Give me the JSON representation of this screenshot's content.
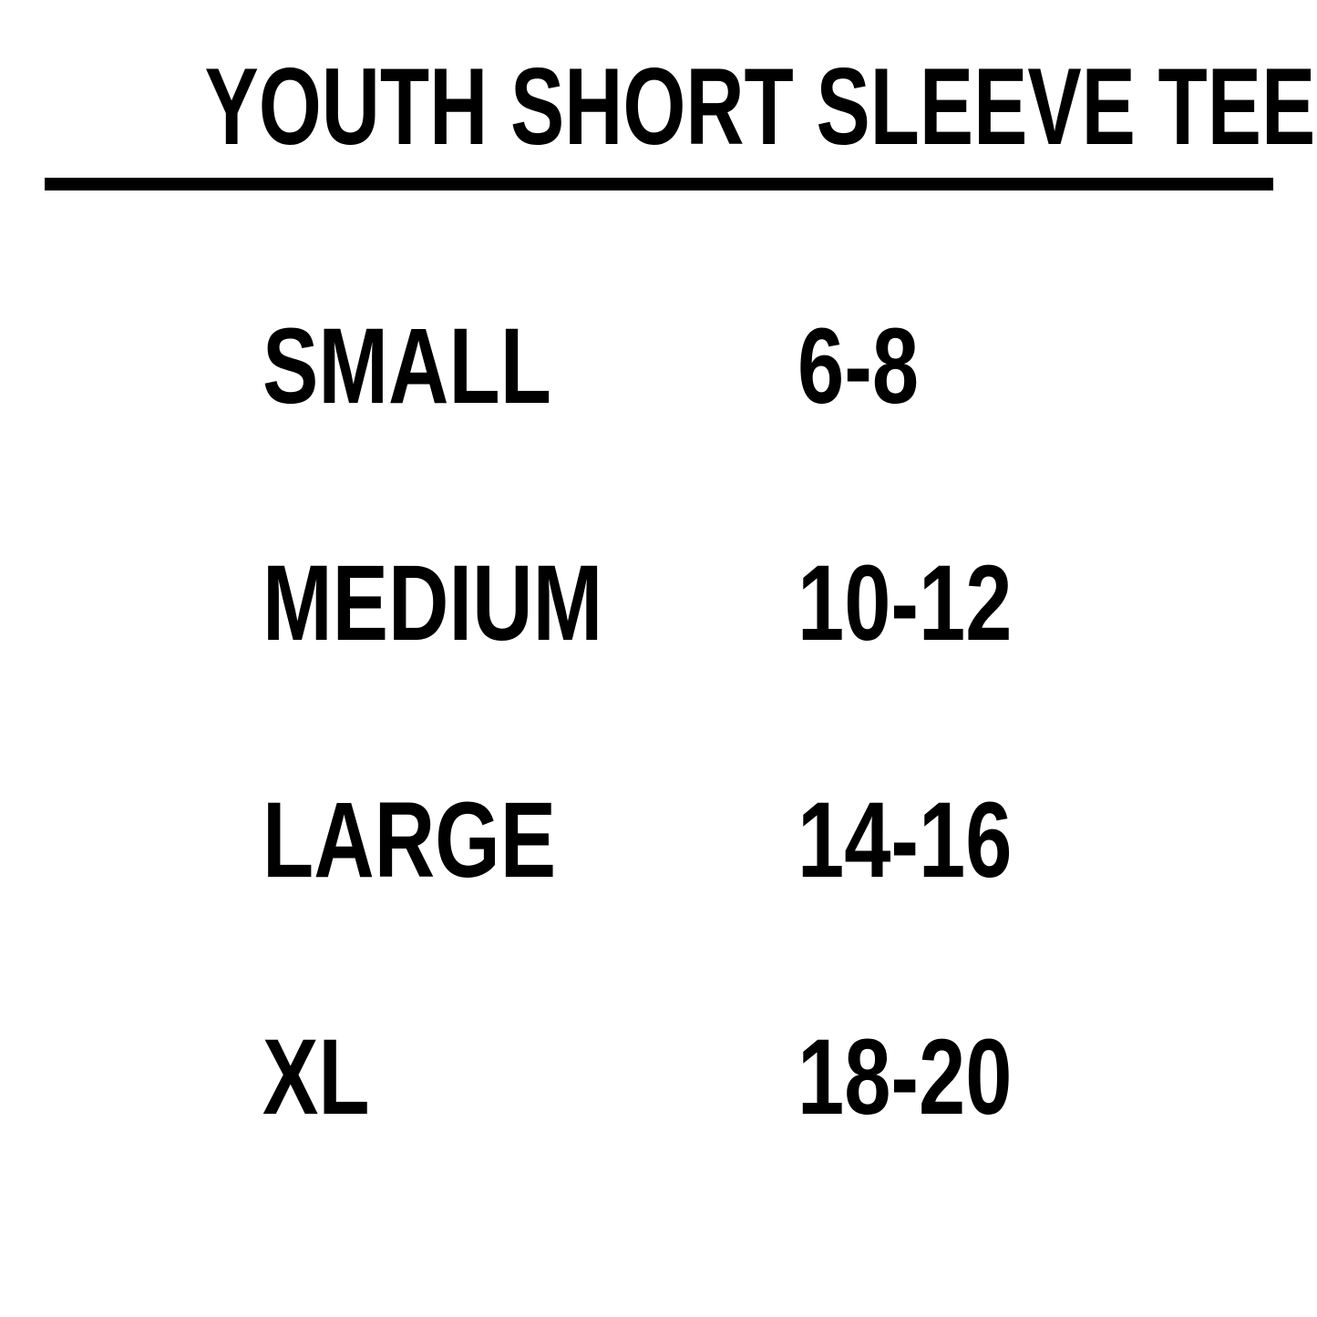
{
  "page": {
    "title": "YOUTH SHORT SLEEVE TEES",
    "colors": {
      "background": "#ffffff",
      "text": "#000000",
      "rule": "#000000"
    }
  },
  "size_table": {
    "rows": [
      {
        "size": "SMALL",
        "range": "6-8"
      },
      {
        "size": "MEDIUM",
        "range": "10-12"
      },
      {
        "size": "LARGE",
        "range": "14-16"
      },
      {
        "size": "XL",
        "range": "18-20"
      }
    ]
  }
}
